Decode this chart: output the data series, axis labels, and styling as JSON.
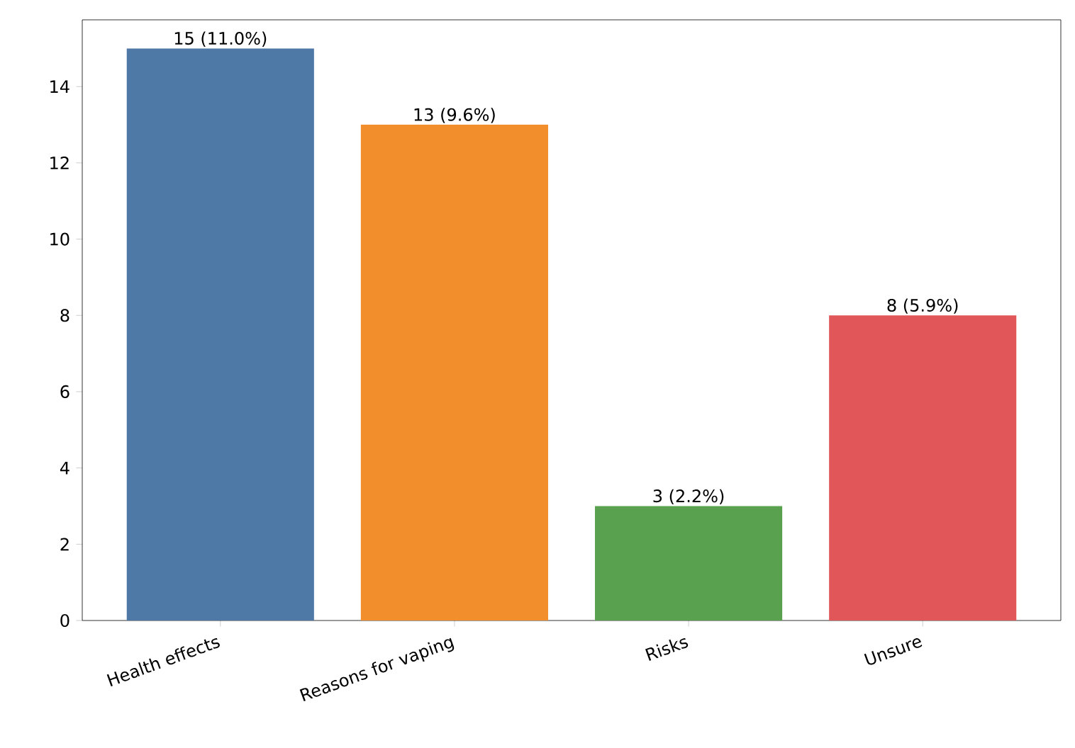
{
  "chart_data": {
    "type": "bar",
    "categories": [
      "Health effects",
      "Reasons for vaping",
      "Risks",
      "Unsure"
    ],
    "values": [
      15,
      13,
      3,
      8
    ],
    "colors": [
      "#4e79a7",
      "#f28e2b",
      "#59a14f",
      "#e15759"
    ],
    "value_labels": [
      "15 (11.0%)",
      "13 (9.6%)",
      "3 (2.2%)",
      "8 (5.9%)"
    ],
    "ylim": [
      0,
      15.75
    ],
    "yticks": [
      0,
      2,
      4,
      6,
      8,
      10,
      12,
      14
    ]
  }
}
